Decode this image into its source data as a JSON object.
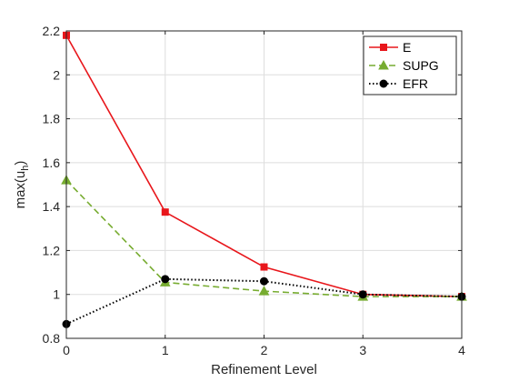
{
  "chart_data": {
    "type": "line",
    "xlabel": "Refinement Level",
    "ylabel": "max(u",
    "ylabel_subscript": "h",
    "ylabel_close": ")",
    "xlim": [
      0,
      4
    ],
    "ylim": [
      0.8,
      2.2
    ],
    "x_ticks": [
      "0",
      "1",
      "2",
      "3",
      "4"
    ],
    "y_ticks": [
      "0.8",
      "1",
      "1.2",
      "1.4",
      "1.6",
      "1.8",
      "2",
      "2.2"
    ],
    "grid": true,
    "legend_position": "top-right",
    "x": [
      0,
      1,
      2,
      3,
      4
    ],
    "series": [
      {
        "name": "E",
        "values": [
          2.18,
          1.375,
          1.125,
          1.0,
          0.99
        ],
        "color": "#e8161b",
        "line": "solid",
        "marker": "square"
      },
      {
        "name": "SUPG",
        "values": [
          1.52,
          1.055,
          1.015,
          0.99,
          0.99
        ],
        "color": "#77ac30",
        "line": "dashed",
        "marker": "triangle"
      },
      {
        "name": "EFR",
        "values": [
          0.865,
          1.07,
          1.06,
          1.0,
          0.99
        ],
        "color": "#000000",
        "line": "dotted",
        "marker": "circle"
      }
    ]
  }
}
